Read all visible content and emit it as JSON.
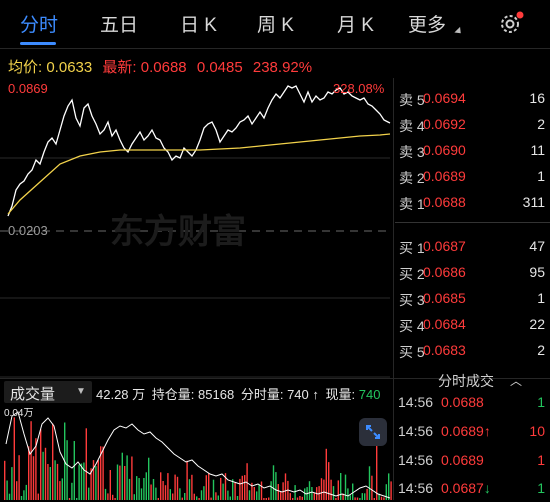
{
  "tabs": [
    {
      "label": "分时",
      "active": true
    },
    {
      "label": "五日",
      "active": false
    },
    {
      "label": "日 K",
      "active": false
    },
    {
      "label": "周 K",
      "active": false
    },
    {
      "label": "月 K",
      "active": false
    },
    {
      "label": "更多",
      "active": false
    }
  ],
  "settings_icon": "gear-icon",
  "info": {
    "avg_label": "均价:",
    "avg_value": "0.0633",
    "latest_label": "最新:",
    "latest_value": "0.0688",
    "change": "0.0485",
    "change_pct": "238.92%"
  },
  "chart": {
    "high_price": "0.0869",
    "high_pct": "328.08%",
    "base_price": "0.0203",
    "watermark": "东方财富"
  },
  "volume_header": {
    "title": "成交量",
    "value": "42.28 万",
    "oi_label": "持仓量:",
    "oi_value": "85168",
    "tick_label": "分时量:",
    "tick_value": "740",
    "now_label": "现量:",
    "now_value": "740",
    "axis_label": "0.04万"
  },
  "order_book": {
    "asks": [
      {
        "label": "卖 5",
        "price": "0.0694",
        "vol": "16"
      },
      {
        "label": "卖 4",
        "price": "0.0692",
        "vol": "2"
      },
      {
        "label": "卖 3",
        "price": "0.0690",
        "vol": "11"
      },
      {
        "label": "卖 2",
        "price": "0.0689",
        "vol": "1"
      },
      {
        "label": "卖 1",
        "price": "0.0688",
        "vol": "311"
      }
    ],
    "bids": [
      {
        "label": "买 1",
        "price": "0.0687",
        "vol": "47"
      },
      {
        "label": "买 2",
        "price": "0.0686",
        "vol": "95"
      },
      {
        "label": "买 3",
        "price": "0.0685",
        "vol": "1"
      },
      {
        "label": "买 4",
        "price": "0.0684",
        "vol": "22"
      },
      {
        "label": "买 5",
        "price": "0.0683",
        "vol": "2"
      }
    ]
  },
  "trades": {
    "title": "分时成交",
    "rows": [
      {
        "time": "14:56",
        "price": "0.0688",
        "arrow": "",
        "vol": "1",
        "color": "#ff3b3b",
        "volcolor": "#23c55e"
      },
      {
        "time": "14:56",
        "price": "0.0689",
        "arrow": "↑",
        "vol": "10",
        "color": "#ff3b3b",
        "volcolor": "#ff3b3b"
      },
      {
        "time": "14:56",
        "price": "0.0689",
        "arrow": "",
        "vol": "1",
        "color": "#ff3b3b",
        "volcolor": "#ff3b3b"
      },
      {
        "time": "14:56",
        "price": "0.0687",
        "arrow": "↓",
        "vol": "1",
        "color": "#ff3b3b",
        "volcolor": "#23c55e"
      }
    ]
  },
  "colors": {
    "up": "#ff3b3b",
    "down": "#23c55e",
    "avg_line": "#f2d24b",
    "accent": "#3d8cff"
  }
}
